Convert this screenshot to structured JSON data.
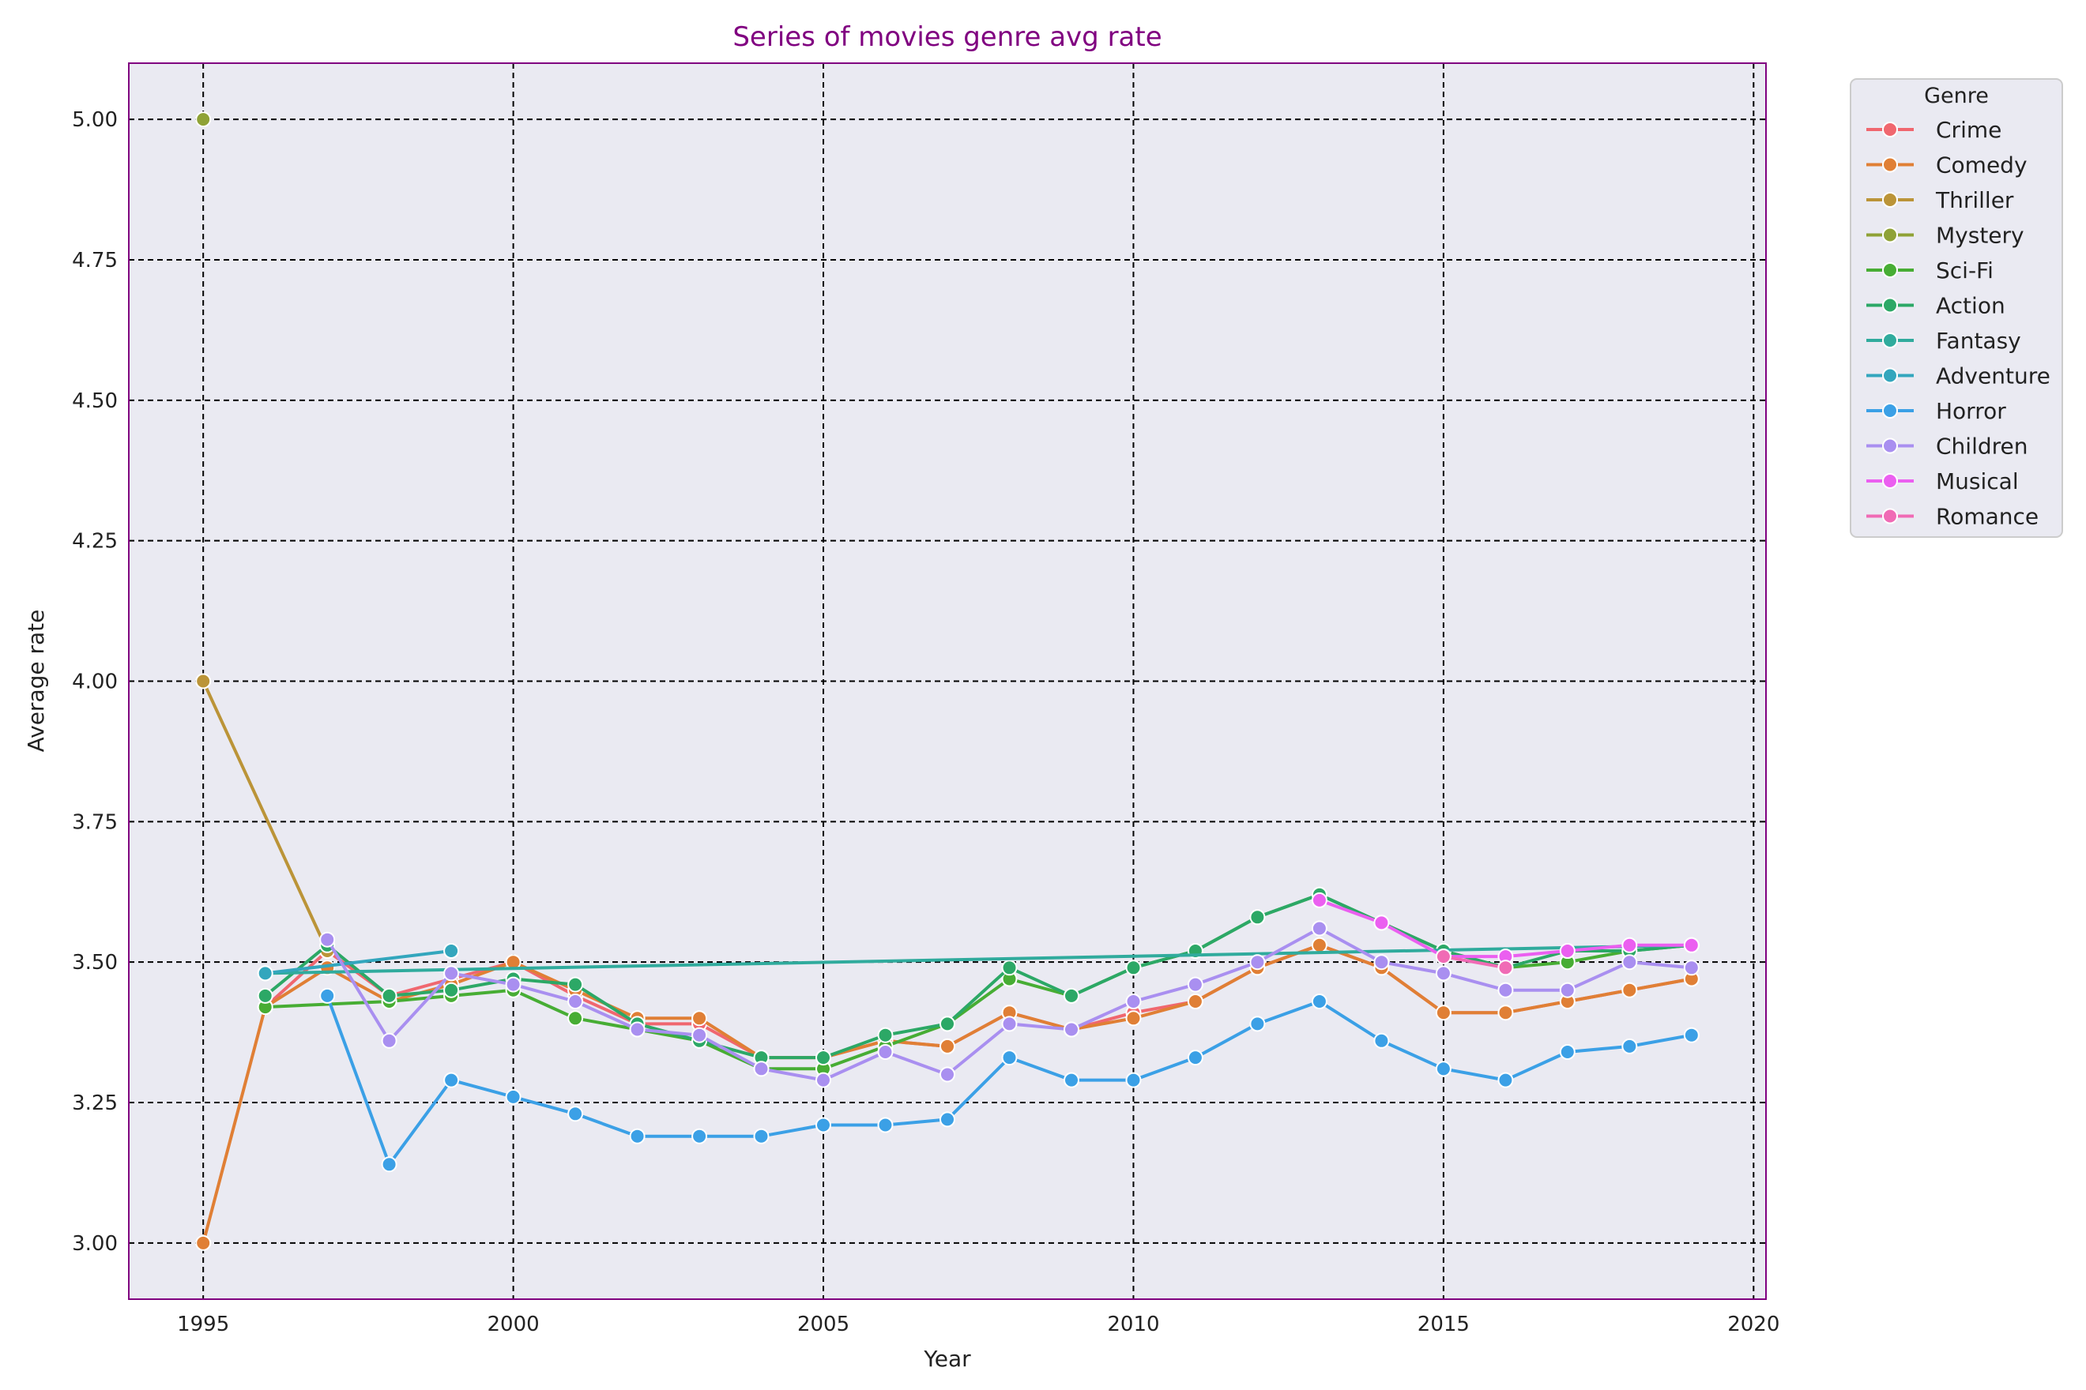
{
  "chart_data": {
    "type": "line",
    "title": "Series of movies genre avg rate",
    "xlabel": "Year",
    "ylabel": "Average rate",
    "xlim": [
      1993.8,
      2020.2
    ],
    "ylim": [
      2.9,
      5.1
    ],
    "xticks": [
      1995,
      2000,
      2005,
      2010,
      2015,
      2020
    ],
    "yticks": [
      3.0,
      3.25,
      3.5,
      3.75,
      4.0,
      4.25,
      4.5,
      4.75,
      5.0
    ],
    "ytick_labels": [
      "3.00",
      "3.25",
      "3.50",
      "3.75",
      "4.00",
      "4.25",
      "4.50",
      "4.75",
      "5.00"
    ],
    "grid": true,
    "legend_title": "Genre",
    "legend_position": "outside-top-right",
    "series": [
      {
        "name": "Crime",
        "color": "#f0676f",
        "points": [
          [
            1996,
            3.42
          ],
          [
            1997,
            3.52
          ],
          [
            1998,
            3.44
          ],
          [
            1999,
            3.47
          ],
          [
            2000,
            3.5
          ],
          [
            2001,
            3.44
          ],
          [
            2002,
            3.39
          ],
          [
            2003,
            3.39
          ],
          [
            2004,
            3.33
          ],
          [
            2005,
            3.33
          ],
          [
            2006,
            3.36
          ],
          [
            2007,
            3.35
          ],
          [
            2008,
            3.41
          ],
          [
            2009,
            3.38
          ],
          [
            2010,
            3.41
          ],
          [
            2011,
            3.43
          ],
          [
            2012,
            3.49
          ],
          [
            2013,
            3.53
          ],
          [
            2014,
            3.49
          ],
          [
            2015,
            3.41
          ],
          [
            2016,
            3.41
          ],
          [
            2017,
            3.43
          ],
          [
            2018,
            3.45
          ],
          [
            2019,
            3.47
          ]
        ]
      },
      {
        "name": "Comedy",
        "color": "#e07f35",
        "points": [
          [
            1995,
            3.0
          ],
          [
            1996,
            3.42
          ],
          [
            1997,
            3.49
          ],
          [
            1998,
            3.43
          ],
          [
            1999,
            3.46
          ],
          [
            2000,
            3.5
          ],
          [
            2001,
            3.45
          ],
          [
            2002,
            3.4
          ],
          [
            2003,
            3.4
          ],
          [
            2004,
            3.33
          ],
          [
            2005,
            3.33
          ],
          [
            2006,
            3.36
          ],
          [
            2007,
            3.35
          ],
          [
            2008,
            3.41
          ],
          [
            2009,
            3.38
          ],
          [
            2010,
            3.4
          ],
          [
            2011,
            3.43
          ],
          [
            2012,
            3.49
          ],
          [
            2013,
            3.53
          ],
          [
            2014,
            3.49
          ],
          [
            2015,
            3.41
          ],
          [
            2016,
            3.41
          ],
          [
            2017,
            3.43
          ],
          [
            2018,
            3.45
          ],
          [
            2019,
            3.47
          ]
        ]
      },
      {
        "name": "Thriller",
        "color": "#bb9438",
        "points": [
          [
            1995,
            4.0
          ],
          [
            1997,
            3.52
          ]
        ]
      },
      {
        "name": "Mystery",
        "color": "#8fa236",
        "points": [
          [
            1995,
            5.0
          ]
        ]
      },
      {
        "name": "Sci-Fi",
        "color": "#47ad34",
        "points": [
          [
            1996,
            3.42
          ],
          [
            1998,
            3.43
          ],
          [
            1999,
            3.44
          ],
          [
            2000,
            3.45
          ],
          [
            2001,
            3.4
          ],
          [
            2002,
            3.38
          ],
          [
            2003,
            3.36
          ],
          [
            2004,
            3.31
          ],
          [
            2005,
            3.31
          ],
          [
            2006,
            3.35
          ],
          [
            2007,
            3.39
          ],
          [
            2008,
            3.47
          ],
          [
            2009,
            3.44
          ],
          [
            2010,
            3.49
          ],
          [
            2011,
            3.52
          ],
          [
            2012,
            3.58
          ],
          [
            2013,
            3.62
          ],
          [
            2014,
            3.57
          ],
          [
            2015,
            3.52
          ],
          [
            2016,
            3.49
          ],
          [
            2017,
            3.5
          ],
          [
            2018,
            3.52
          ],
          [
            2019,
            3.53
          ]
        ]
      },
      {
        "name": "Action",
        "color": "#2ca866",
        "points": [
          [
            1996,
            3.44
          ],
          [
            1997,
            3.53
          ],
          [
            1998,
            3.44
          ],
          [
            1999,
            3.45
          ],
          [
            2000,
            3.47
          ],
          [
            2001,
            3.46
          ],
          [
            2002,
            3.39
          ],
          [
            2003,
            3.36
          ],
          [
            2004,
            3.33
          ],
          [
            2005,
            3.33
          ],
          [
            2006,
            3.37
          ],
          [
            2007,
            3.39
          ],
          [
            2008,
            3.49
          ],
          [
            2009,
            3.44
          ],
          [
            2010,
            3.49
          ],
          [
            2011,
            3.52
          ],
          [
            2012,
            3.58
          ],
          [
            2013,
            3.62
          ],
          [
            2014,
            3.57
          ],
          [
            2015,
            3.52
          ],
          [
            2016,
            3.49
          ],
          [
            2017,
            3.52
          ],
          [
            2018,
            3.52
          ],
          [
            2019,
            3.53
          ]
        ]
      },
      {
        "name": "Fantasy",
        "color": "#30ab9d",
        "points": [
          [
            1996,
            3.48
          ],
          [
            2019,
            3.53
          ]
        ]
      },
      {
        "name": "Adventure",
        "color": "#33a6bd",
        "points": [
          [
            1996,
            3.48
          ],
          [
            1999,
            3.52
          ]
        ]
      },
      {
        "name": "Horror",
        "color": "#3ba0e6",
        "points": [
          [
            1997,
            3.44
          ],
          [
            1998,
            3.14
          ],
          [
            1999,
            3.29
          ],
          [
            2000,
            3.26
          ],
          [
            2001,
            3.23
          ],
          [
            2002,
            3.19
          ],
          [
            2003,
            3.19
          ],
          [
            2004,
            3.19
          ],
          [
            2005,
            3.21
          ],
          [
            2006,
            3.21
          ],
          [
            2007,
            3.22
          ],
          [
            2008,
            3.33
          ],
          [
            2009,
            3.29
          ],
          [
            2010,
            3.29
          ],
          [
            2011,
            3.33
          ],
          [
            2012,
            3.39
          ],
          [
            2013,
            3.43
          ],
          [
            2014,
            3.36
          ],
          [
            2015,
            3.31
          ],
          [
            2016,
            3.29
          ],
          [
            2017,
            3.34
          ],
          [
            2018,
            3.35
          ],
          [
            2019,
            3.37
          ]
        ]
      },
      {
        "name": "Children",
        "color": "#a98ff0",
        "points": [
          [
            1997,
            3.54
          ],
          [
            1998,
            3.36
          ],
          [
            1999,
            3.48
          ],
          [
            2000,
            3.46
          ],
          [
            2001,
            3.43
          ],
          [
            2002,
            3.38
          ],
          [
            2003,
            3.37
          ],
          [
            2004,
            3.31
          ],
          [
            2005,
            3.29
          ],
          [
            2006,
            3.34
          ],
          [
            2007,
            3.3
          ],
          [
            2008,
            3.39
          ],
          [
            2009,
            3.38
          ],
          [
            2010,
            3.43
          ],
          [
            2011,
            3.46
          ],
          [
            2012,
            3.5
          ],
          [
            2013,
            3.56
          ],
          [
            2014,
            3.5
          ],
          [
            2015,
            3.48
          ],
          [
            2016,
            3.45
          ],
          [
            2017,
            3.45
          ],
          [
            2018,
            3.5
          ],
          [
            2019,
            3.49
          ]
        ]
      },
      {
        "name": "Musical",
        "color": "#eb5ff0",
        "points": [
          [
            2013,
            3.61
          ],
          [
            2014,
            3.57
          ],
          [
            2015,
            3.51
          ],
          [
            2016,
            3.51
          ],
          [
            2017,
            3.52
          ],
          [
            2018,
            3.53
          ],
          [
            2019,
            3.53
          ]
        ]
      },
      {
        "name": "Romance",
        "color": "#f06bb5",
        "points": [
          [
            2015,
            3.51
          ],
          [
            2016,
            3.49
          ]
        ]
      }
    ]
  }
}
